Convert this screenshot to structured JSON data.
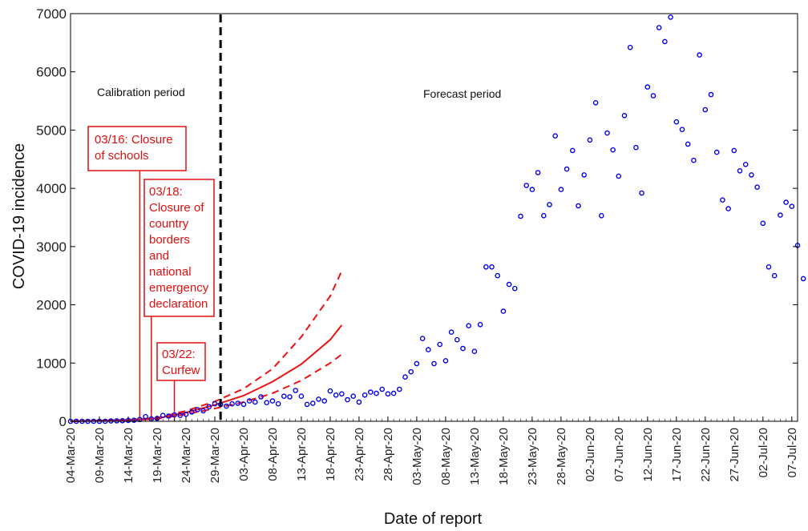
{
  "chart_data": {
    "type": "scatter",
    "xlabel": "Date of report",
    "ylabel": "COVID-19 incidence",
    "ylim": [
      0,
      7000
    ],
    "xlim": [
      "2020-03-04",
      "2020-07-08"
    ],
    "y_ticks": [
      "0",
      "1000",
      "2000",
      "3000",
      "4000",
      "5000",
      "6000",
      "7000"
    ],
    "x_ticks": [
      "04-Mar-20",
      "09-Mar-20",
      "14-Mar-20",
      "19-Mar-20",
      "24-Mar-20",
      "29-Mar-20",
      "03-Apr-20",
      "08-Apr-20",
      "13-Apr-20",
      "18-Apr-20",
      "23-Apr-20",
      "28-Apr-20",
      "03-May-20",
      "08-May-20",
      "13-May-20",
      "18-May-20",
      "23-May-20",
      "28-May-20",
      "02-Jun-20",
      "07-Jun-20",
      "12-Jun-20",
      "17-Jun-20",
      "22-Jun-20",
      "27-Jun-20",
      "02-Jul-20",
      "07-Jul-20"
    ],
    "x_tick_dates": [
      "2020-03-04",
      "2020-03-09",
      "2020-03-14",
      "2020-03-19",
      "2020-03-24",
      "2020-03-29",
      "2020-04-03",
      "2020-04-08",
      "2020-04-13",
      "2020-04-18",
      "2020-04-23",
      "2020-04-28",
      "2020-05-03",
      "2020-05-08",
      "2020-05-13",
      "2020-05-18",
      "2020-05-23",
      "2020-05-28",
      "2020-06-02",
      "2020-06-07",
      "2020-06-12",
      "2020-06-17",
      "2020-06-22",
      "2020-06-27",
      "2020-07-02",
      "2020-07-07"
    ],
    "grid": false,
    "period_labels": {
      "calibration": "Calibration period",
      "forecast": "Forecast period"
    },
    "calibration_end": "2020-03-30",
    "series": [
      {
        "kind": "observed",
        "style": "markers",
        "color": "#0000ee",
        "start_date": "2020-03-04",
        "values": [
          0,
          0,
          0,
          0,
          0,
          0,
          0,
          5,
          8,
          10,
          15,
          18,
          30,
          80,
          40,
          50,
          100,
          90,
          110,
          100,
          120,
          160,
          200,
          180,
          250,
          300,
          290,
          260,
          300,
          310,
          290,
          350,
          330,
          420,
          320,
          350,
          300,
          430,
          420,
          530,
          430,
          290,
          310,
          380,
          350,
          520,
          450,
          470,
          370,
          430,
          330,
          450,
          500,
          480,
          550,
          470,
          480,
          550,
          760,
          850,
          990,
          1420,
          1230,
          990,
          1320,
          1040,
          1530,
          1400,
          1250,
          1640,
          1200,
          1660,
          2650,
          2650,
          2500,
          1890,
          2350,
          2280,
          3520,
          4050,
          3980,
          4270,
          3530,
          3720,
          4900,
          3980,
          4330,
          4650,
          3700,
          4230,
          4830,
          5470,
          3530,
          4950,
          4660,
          4210,
          5250,
          6420,
          4700,
          3920,
          5740,
          5590,
          6760,
          6520,
          6940,
          5140,
          5010,
          4760,
          4480,
          6290,
          5350,
          5610,
          4620,
          3800,
          3650,
          4650,
          4300,
          4410,
          4230,
          4020,
          3400,
          2650,
          2500,
          3540,
          3760,
          3690,
          3020,
          2450
        ]
      },
      {
        "kind": "forecast-median",
        "style": "solid",
        "color": "#ee1111",
        "x": [
          "2020-03-04",
          "2020-03-14",
          "2020-03-19",
          "2020-03-24",
          "2020-03-29",
          "2020-04-03",
          "2020-04-08",
          "2020-04-13",
          "2020-04-18",
          "2020-04-20"
        ],
        "y": [
          0,
          20,
          50,
          150,
          280,
          440,
          680,
          980,
          1400,
          1650
        ]
      },
      {
        "kind": "forecast-upper",
        "style": "dashed",
        "color": "#ee1111",
        "x": [
          "2020-03-04",
          "2020-03-14",
          "2020-03-19",
          "2020-03-24",
          "2020-03-29",
          "2020-04-03",
          "2020-04-08",
          "2020-04-13",
          "2020-04-18",
          "2020-04-20"
        ],
        "y": [
          0,
          25,
          60,
          180,
          340,
          560,
          900,
          1450,
          2150,
          2580
        ]
      },
      {
        "kind": "forecast-lower",
        "style": "dashed",
        "color": "#ee1111",
        "x": [
          "2020-03-04",
          "2020-03-14",
          "2020-03-19",
          "2020-03-24",
          "2020-03-29",
          "2020-04-03",
          "2020-04-08",
          "2020-04-13",
          "2020-04-18",
          "2020-04-20"
        ],
        "y": [
          0,
          15,
          40,
          120,
          220,
          330,
          480,
          700,
          1000,
          1150
        ]
      }
    ],
    "annotations": [
      {
        "date": "2020-03-16",
        "lines": [
          "03/16: Closure",
          "of schools"
        ],
        "color": "#ee1111"
      },
      {
        "date": "2020-03-18",
        "lines": [
          "03/18:",
          "Closure of",
          "country",
          "borders",
          "and",
          "national",
          "emergency",
          "declaration"
        ],
        "color": "#ee1111"
      },
      {
        "date": "2020-03-22",
        "lines": [
          "03/22:",
          "Curfew"
        ],
        "color": "#ee1111"
      }
    ]
  }
}
